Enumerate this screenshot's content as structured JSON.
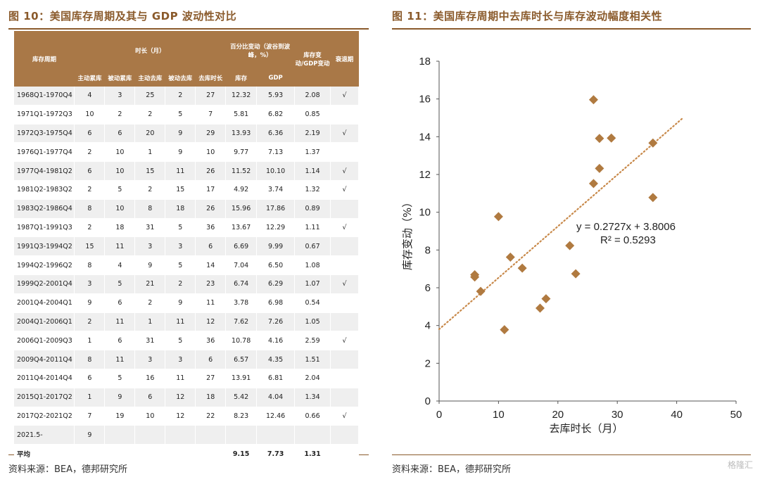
{
  "left": {
    "title": "图 10：美国库存周期及其与 GDP 波动性对比",
    "source": "资料来源：BEA，德邦研究所",
    "table": {
      "head1": [
        "库存周期",
        "时长（月）",
        "百分比变动（波谷到波峰，%）",
        "库存变动/GDP变动",
        "衰退期"
      ],
      "head2": [
        "主动累库",
        "被动累库",
        "主动去库",
        "被动去库",
        "去库时长",
        "库存",
        "GDP"
      ],
      "rows": [
        [
          "1968Q1-1970Q4",
          "4",
          "3",
          "25",
          "2",
          "27",
          "12.32",
          "5.93",
          "2.08",
          "√"
        ],
        [
          "1971Q1-1972Q3",
          "10",
          "2",
          "2",
          "5",
          "7",
          "5.81",
          "6.82",
          "0.85",
          ""
        ],
        [
          "1972Q3-1975Q4",
          "6",
          "6",
          "20",
          "9",
          "29",
          "13.93",
          "6.36",
          "2.19",
          "√"
        ],
        [
          "1976Q1-1977Q4",
          "2",
          "10",
          "1",
          "9",
          "10",
          "9.77",
          "7.13",
          "1.37",
          ""
        ],
        [
          "1977Q4-1981Q2",
          "6",
          "10",
          "15",
          "11",
          "26",
          "11.52",
          "10.10",
          "1.14",
          "√"
        ],
        [
          "1981Q2-1983Q2",
          "2",
          "5",
          "2",
          "15",
          "17",
          "4.92",
          "3.74",
          "1.32",
          "√"
        ],
        [
          "1983Q2-1986Q4",
          "8",
          "10",
          "8",
          "18",
          "26",
          "15.96",
          "17.86",
          "0.89",
          ""
        ],
        [
          "1987Q1-1991Q3",
          "2",
          "18",
          "31",
          "5",
          "36",
          "13.67",
          "12.29",
          "1.11",
          "√"
        ],
        [
          "1991Q3-1994Q2",
          "15",
          "11",
          "3",
          "3",
          "6",
          "6.69",
          "9.99",
          "0.67",
          ""
        ],
        [
          "1994Q2-1996Q2",
          "8",
          "4",
          "9",
          "5",
          "14",
          "7.04",
          "6.50",
          "1.08",
          ""
        ],
        [
          "1999Q2-2001Q4",
          "3",
          "5",
          "21",
          "2",
          "23",
          "6.74",
          "6.29",
          "1.07",
          "√"
        ],
        [
          "2001Q4-2004Q1",
          "9",
          "6",
          "2",
          "9",
          "11",
          "3.78",
          "6.98",
          "0.54",
          ""
        ],
        [
          "2004Q1-2006Q1",
          "2",
          "11",
          "1",
          "11",
          "12",
          "7.62",
          "7.26",
          "1.05",
          ""
        ],
        [
          "2006Q1-2009Q3",
          "1",
          "6",
          "31",
          "5",
          "36",
          "10.78",
          "4.16",
          "2.59",
          "√"
        ],
        [
          "2009Q4-2011Q4",
          "8",
          "11",
          "3",
          "3",
          "6",
          "6.57",
          "4.35",
          "1.51",
          ""
        ],
        [
          "2011Q4-2014Q4",
          "6",
          "5",
          "16",
          "11",
          "27",
          "13.91",
          "6.81",
          "2.04",
          ""
        ],
        [
          "2015Q1-2017Q2",
          "1",
          "9",
          "6",
          "12",
          "18",
          "5.42",
          "4.04",
          "1.34",
          ""
        ],
        [
          "2017Q2-2021Q2",
          "7",
          "19",
          "10",
          "12",
          "22",
          "8.23",
          "12.46",
          "0.66",
          "√"
        ],
        [
          "2021.5-",
          "9",
          "",
          "",
          "",
          "",
          "",
          "",
          "",
          ""
        ],
        [
          "平均",
          "",
          "",
          "",
          "",
          "",
          "9.15",
          "7.73",
          "1.31",
          ""
        ]
      ]
    }
  },
  "right": {
    "title": "图 11：美国库存周期中去库时长与库存波动幅度相关性",
    "source": "资料来源：BEA，德邦研究所"
  },
  "chart_data": {
    "type": "scatter",
    "title": "",
    "xlabel": "去库时长（月）",
    "ylabel": "库存变动（%）",
    "xlim": [
      0,
      50
    ],
    "ylim": [
      0,
      18
    ],
    "xticks": [
      0,
      10,
      20,
      30,
      40,
      50
    ],
    "yticks": [
      0,
      2,
      4,
      6,
      8,
      10,
      12,
      14,
      16,
      18
    ],
    "series": [
      {
        "marker": "diamond",
        "color": "#b07a40",
        "points": [
          [
            27,
            12.32
          ],
          [
            7,
            5.81
          ],
          [
            29,
            13.93
          ],
          [
            10,
            9.77
          ],
          [
            26,
            11.52
          ],
          [
            17,
            4.92
          ],
          [
            26,
            15.96
          ],
          [
            36,
            13.67
          ],
          [
            6,
            6.69
          ],
          [
            14,
            7.04
          ],
          [
            23,
            6.74
          ],
          [
            11,
            3.78
          ],
          [
            12,
            7.62
          ],
          [
            36,
            10.78
          ],
          [
            6,
            6.57
          ],
          [
            27,
            13.91
          ],
          [
            18,
            5.42
          ],
          [
            22,
            8.23
          ]
        ]
      }
    ],
    "trendline": {
      "style": "dotted",
      "color": "#c8894a",
      "slope": 0.2727,
      "intercept": 3.8006,
      "x_range": [
        0,
        41
      ],
      "equation": "y = 0.2727x + 3.8006",
      "r2": "R² = 0.5293"
    },
    "grid": false
  },
  "watermark": "格隆汇"
}
